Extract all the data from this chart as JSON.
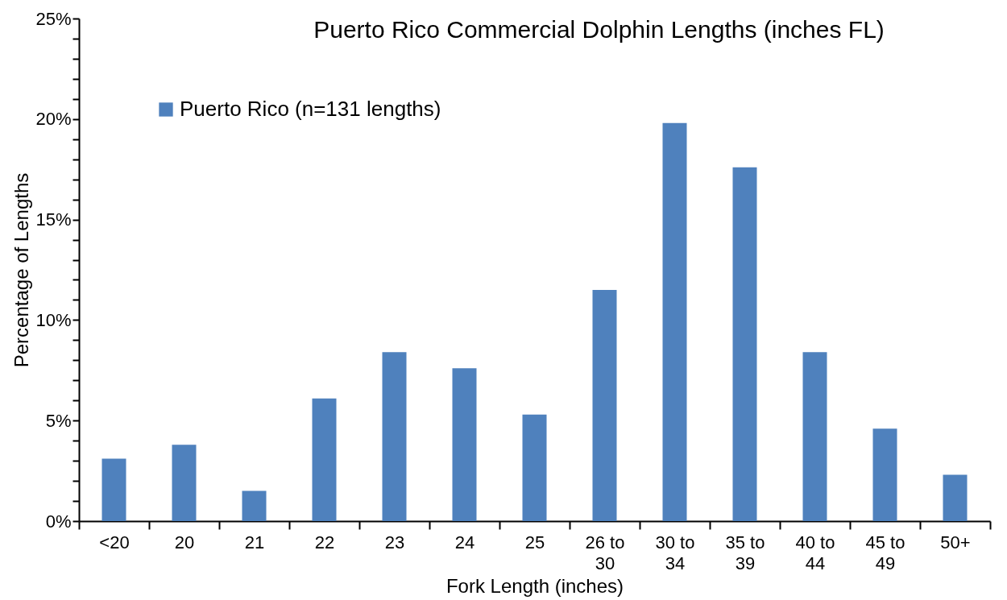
{
  "chart_data": {
    "type": "bar",
    "title": "Puerto Rico Commercial Dolphin Lengths (inches FL)",
    "xlabel": "Fork Length (inches)",
    "ylabel": "Percentage of Lengths",
    "categories": [
      "<20",
      "20",
      "21",
      "22",
      "23",
      "24",
      "25",
      "26 to 30",
      "30 to 34",
      "35 to 39",
      "40 to 44",
      "45 to 49",
      "50+"
    ],
    "series": [
      {
        "name": "Puerto Rico (n=131 lengths)",
        "color": "#4f81bd",
        "values": [
          3.1,
          3.8,
          1.5,
          6.1,
          8.4,
          7.6,
          5.3,
          11.5,
          19.8,
          17.6,
          8.4,
          4.6,
          2.3
        ]
      }
    ],
    "ylim": [
      0,
      25
    ],
    "yticks": [
      {
        "value": 0,
        "label": "0%"
      },
      {
        "value": 1,
        "label": null
      },
      {
        "value": 2,
        "label": null
      },
      {
        "value": 3,
        "label": null
      },
      {
        "value": 4,
        "label": null
      },
      {
        "value": 5,
        "label": "5%"
      },
      {
        "value": 6,
        "label": null
      },
      {
        "value": 7,
        "label": null
      },
      {
        "value": 8,
        "label": null
      },
      {
        "value": 9,
        "label": null
      },
      {
        "value": 10,
        "label": "10%"
      },
      {
        "value": 11,
        "label": null
      },
      {
        "value": 12,
        "label": null
      },
      {
        "value": 13,
        "label": null
      },
      {
        "value": 14,
        "label": null
      },
      {
        "value": 15,
        "label": "15%"
      },
      {
        "value": 16,
        "label": null
      },
      {
        "value": 17,
        "label": null
      },
      {
        "value": 18,
        "label": null
      },
      {
        "value": 19,
        "label": null
      },
      {
        "value": 20,
        "label": "20%"
      },
      {
        "value": 21,
        "label": null
      },
      {
        "value": 22,
        "label": null
      },
      {
        "value": 23,
        "label": null
      },
      {
        "value": 24,
        "label": null
      },
      {
        "value": 25,
        "label": "25%"
      }
    ],
    "grid": false,
    "legend": "top left"
  }
}
